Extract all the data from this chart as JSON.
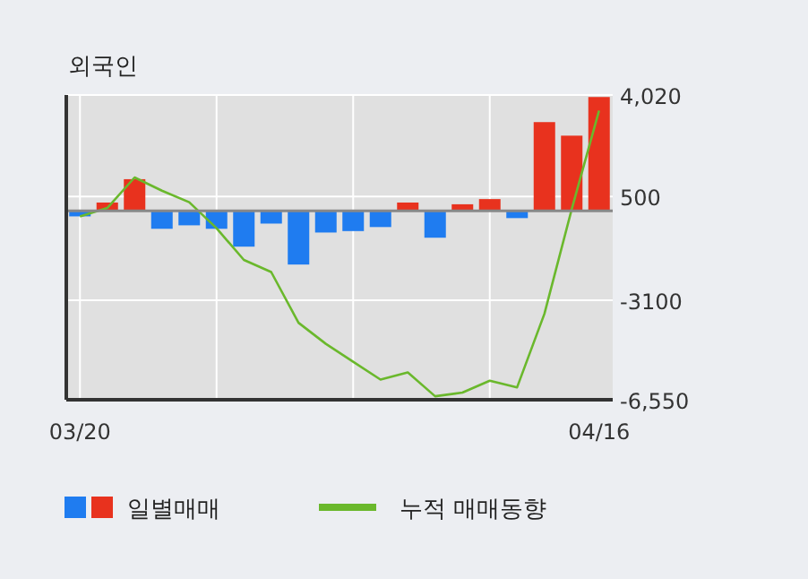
{
  "chart_data": {
    "type": "bar",
    "title": "외국인",
    "categories": [
      "03/20",
      null,
      null,
      null,
      null,
      null,
      null,
      null,
      null,
      null,
      null,
      null,
      null,
      null,
      null,
      null,
      null,
      null,
      null,
      "04/16"
    ],
    "series": [
      {
        "name": "일별매매",
        "colors": [
          "#1f7cf0",
          "#e8321e",
          "#e8321e",
          "#1f7cf0",
          "#1f7cf0",
          "#1f7cf0",
          "#1f7cf0",
          "#1f7cf0",
          "#1f7cf0",
          "#1f7cf0",
          "#1f7cf0",
          "#1f7cf0",
          "#e8321e",
          "#1f7cf0",
          "#e8321e",
          "#e8321e",
          "#1f7cf0",
          "#e8321e",
          "#e8321e",
          "#e8321e"
        ],
        "values": [
          -190,
          290,
          1100,
          -620,
          -500,
          -620,
          -1240,
          -440,
          -1860,
          -750,
          -700,
          -560,
          290,
          -930,
          230,
          410,
          -250,
          3080,
          2610,
          3950
        ]
      },
      {
        "name": "누적 매매동향",
        "type": "line",
        "color": "#6ab82c",
        "values": [
          -190,
          100,
          1160,
          700,
          300,
          -600,
          -1700,
          -2120,
          -3880,
          -4610,
          -5230,
          -5850,
          -5600,
          -6430,
          -6300,
          -5890,
          -6120,
          -3570,
          60,
          3480
        ]
      }
    ],
    "ylim": [
      -6550,
      4020
    ],
    "yticks": [
      {
        "value": 4020,
        "label": "4,020"
      },
      500,
      -3100,
      {
        "value": -6550,
        "label": "-6,550"
      }
    ],
    "grid": true,
    "legend": "bottom"
  }
}
